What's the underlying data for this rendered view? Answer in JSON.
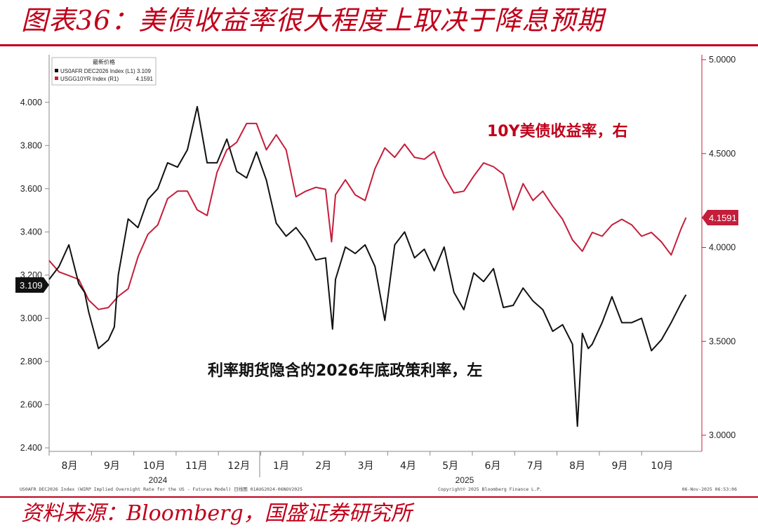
{
  "title": "图表36：美债收益率很大程度上取决于降息预期",
  "source": "资料来源：Bloomberg，国盛证券研究所",
  "colors": {
    "accent": "#c0001a",
    "series_black": "#111111",
    "series_red": "#c41e3a"
  },
  "chart_data": {
    "type": "line",
    "legend": {
      "placement": "top-left",
      "header": "最新价格",
      "entries": [
        {
          "text": "US0AFR DEC2026 Index (L1) 3.109",
          "color": "#111111"
        },
        {
          "text": "USGG10YR Index (R1)",
          "value": "4.1591",
          "color": "#c41e3a"
        }
      ]
    },
    "left_axis": {
      "ylim": [
        2.4,
        4.1
      ],
      "ticks": [
        "4.000",
        "3.800",
        "3.600",
        "3.400",
        "3.200",
        "3.000",
        "2.800",
        "2.600",
        "2.400"
      ]
    },
    "right_axis": {
      "ylim": [
        2.75,
        5.0
      ],
      "ticks": [
        "5.0000",
        "4.5000",
        "4.0000",
        "3.5000",
        "3.0000"
      ]
    },
    "x_ticks": [
      "8月",
      "9月",
      "10月",
      "11月",
      "12月",
      "1月",
      "2月",
      "3月",
      "4月",
      "5月",
      "6月",
      "7月",
      "8月",
      "9月",
      "10月"
    ],
    "year_labels": [
      "2024",
      "2025"
    ],
    "annotations": {
      "red": "10Y美债收益率，右",
      "black": "利率期货隐含的2026年底政策利率，左"
    },
    "last_value_tags": {
      "left": "3.109",
      "right": "4.1591"
    },
    "footer_left": "US0AFR DEC2026 Index (WIRP Implied Overnight Rate for the US - Futures Model) 日线图 01AUG2024-06NOV2025",
    "footer_center": "Copyright© 2025 Bloomberg Finance L.P.",
    "footer_right": "06-Nov-2025 06:53:06",
    "series": [
      {
        "name": "US0AFR DEC2026 Index",
        "axis": "left",
        "color": "#111111",
        "x": [
          0,
          1,
          2,
          3,
          3.6,
          4,
          5,
          6,
          6.6,
          7,
          8,
          9,
          10,
          11,
          12,
          13,
          14,
          15,
          16,
          17,
          18,
          19,
          20,
          21,
          22,
          23,
          24,
          25,
          26,
          27,
          28,
          28.7,
          29,
          30,
          31,
          32,
          33,
          34,
          35,
          36,
          37,
          38,
          39,
          40,
          41,
          42,
          43,
          44,
          45,
          46,
          47,
          48,
          49,
          50,
          51,
          52,
          53,
          53.5,
          54,
          54.6,
          55,
          56,
          57,
          58,
          59,
          60,
          61,
          62,
          63,
          64,
          64.5
        ],
        "values": [
          3.18,
          3.24,
          3.34,
          3.16,
          3.12,
          3.03,
          2.86,
          2.9,
          2.96,
          3.2,
          3.46,
          3.42,
          3.55,
          3.6,
          3.72,
          3.7,
          3.78,
          3.98,
          3.72,
          3.72,
          3.83,
          3.68,
          3.65,
          3.77,
          3.64,
          3.44,
          3.38,
          3.42,
          3.36,
          3.27,
          3.28,
          2.95,
          3.18,
          3.33,
          3.3,
          3.34,
          3.24,
          2.99,
          3.34,
          3.4,
          3.28,
          3.32,
          3.22,
          3.33,
          3.12,
          3.04,
          3.21,
          3.17,
          3.23,
          3.05,
          3.06,
          3.14,
          3.08,
          3.04,
          2.94,
          2.97,
          2.88,
          2.5,
          2.93,
          2.86,
          2.88,
          2.98,
          3.1,
          2.98,
          2.98,
          3.0,
          2.85,
          2.9,
          2.98,
          3.07,
          3.109
        ]
      },
      {
        "name": "USGG10YR Index",
        "axis": "right",
        "color": "#c41e3a",
        "x": [
          0,
          1,
          2,
          3,
          4,
          5,
          6,
          7,
          8,
          9,
          10,
          11,
          12,
          13,
          14,
          15,
          16,
          17,
          18,
          19,
          20,
          21,
          22,
          23,
          24,
          25,
          26,
          27,
          28,
          28.6,
          29,
          30,
          31,
          32,
          33,
          34,
          35,
          36,
          37,
          38,
          39,
          40,
          41,
          42,
          43,
          44,
          45,
          46,
          47,
          48,
          49,
          50,
          51,
          52,
          53,
          54,
          55,
          56,
          57,
          58,
          59,
          60,
          61,
          62,
          63,
          64,
          64.5
        ],
        "values": [
          3.93,
          3.87,
          3.85,
          3.83,
          3.72,
          3.67,
          3.68,
          3.74,
          3.78,
          3.95,
          4.07,
          4.12,
          4.26,
          4.3,
          4.3,
          4.2,
          4.17,
          4.4,
          4.52,
          4.56,
          4.66,
          4.66,
          4.52,
          4.6,
          4.52,
          4.27,
          4.3,
          4.32,
          4.31,
          4.03,
          4.28,
          4.36,
          4.28,
          4.25,
          4.42,
          4.53,
          4.48,
          4.55,
          4.48,
          4.47,
          4.51,
          4.38,
          4.29,
          4.3,
          4.38,
          4.45,
          4.43,
          4.39,
          4.2,
          4.34,
          4.25,
          4.3,
          4.22,
          4.15,
          4.04,
          3.98,
          4.08,
          4.06,
          4.12,
          4.15,
          4.12,
          4.06,
          4.08,
          4.03,
          3.96,
          4.1,
          4.159
        ]
      }
    ]
  }
}
